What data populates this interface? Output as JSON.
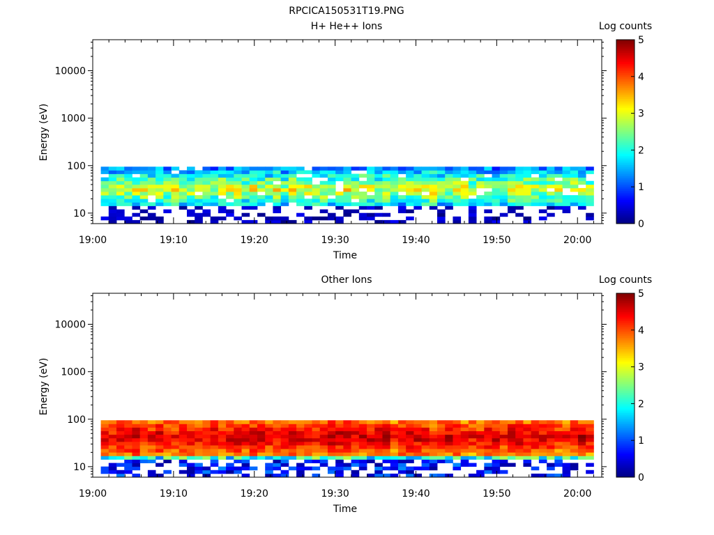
{
  "figure_title": "RPCICA150531T19.PNG",
  "chart_data": [
    {
      "type": "heatmap",
      "title": "H+ He++ Ions",
      "xlabel": "Time",
      "ylabel": "Energy (eV)",
      "x_ticks": [
        "19:00",
        "19:10",
        "19:20",
        "19:30",
        "19:40",
        "19:50",
        "20:00"
      ],
      "x_range": [
        "19:00",
        "20:03"
      ],
      "y_scale": "log",
      "y_ticks": [
        10,
        100,
        1000,
        10000
      ],
      "y_tick_labels": [
        "10",
        "100",
        "1000",
        "10000"
      ],
      "y_range": [
        6,
        45000
      ],
      "colorbar": {
        "label": "Log counts",
        "ticks": [
          "0",
          "1",
          "2",
          "3",
          "4",
          "5"
        ],
        "range": [
          0,
          5
        ]
      },
      "data_time_range": [
        "19:01",
        "20:02"
      ],
      "data_energy_range": [
        6,
        95
      ],
      "approx_peak_log_counts": 3.2
    },
    {
      "type": "heatmap",
      "title": "Other Ions",
      "xlabel": "Time",
      "ylabel": "Energy (eV)",
      "x_ticks": [
        "19:00",
        "19:10",
        "19:20",
        "19:30",
        "19:40",
        "19:50",
        "20:00"
      ],
      "x_range": [
        "19:00",
        "20:03"
      ],
      "y_scale": "log",
      "y_ticks": [
        10,
        100,
        1000,
        10000
      ],
      "y_tick_labels": [
        "10",
        "100",
        "1000",
        "10000"
      ],
      "y_range": [
        6,
        45000
      ],
      "colorbar": {
        "label": "Log counts",
        "ticks": [
          "0",
          "1",
          "2",
          "3",
          "4",
          "5"
        ],
        "range": [
          0,
          5
        ]
      },
      "data_time_range": [
        "19:01",
        "20:02"
      ],
      "data_energy_range": [
        6,
        95
      ],
      "approx_peak_log_counts": 4.8
    }
  ]
}
